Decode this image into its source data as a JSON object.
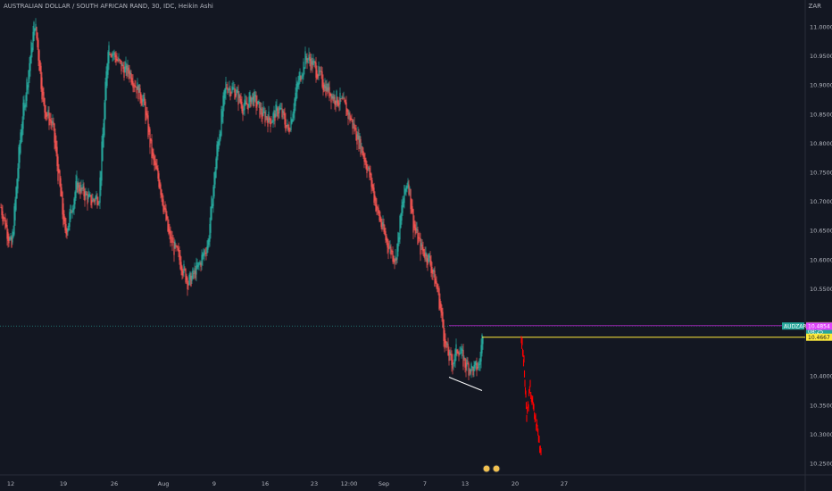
{
  "header": {
    "title": "AUSTRALIAN DOLLAR / SOUTH AFRICAN RAND, 30, IDC, Heikin Ashi",
    "currency": "ZAR"
  },
  "colors": {
    "background": "#131722",
    "up": "#26a69a",
    "down": "#ef5350",
    "projection": "#ff0000",
    "purple_line": "#9c27b0",
    "yellow_line": "#ffeb3b",
    "trend_line": "#ffffff"
  },
  "price_tags": {
    "symbol": "AUDZAR",
    "top": "10.4865",
    "last": "10.4859",
    "countdown": "08:25",
    "magenta": "10.4854",
    "yellow": "10.4667"
  },
  "chart_data": {
    "type": "candlestick",
    "style": "Heikin Ashi",
    "timeframe": "30",
    "ylim": [
      10.23,
      11.05
    ],
    "yticks": [
      "11.0000",
      "10.9500",
      "10.9000",
      "10.8500",
      "10.8000",
      "10.7500",
      "10.7000",
      "10.6500",
      "10.6000",
      "10.5500",
      "10.4000",
      "10.3500",
      "10.3000",
      "10.2500"
    ],
    "xticks": [
      "12",
      "19",
      "26",
      "Aug",
      "9",
      "16",
      "23",
      "12:00",
      "Sep",
      "7",
      "13",
      "20",
      "27"
    ],
    "key_points": [
      {
        "i": 0,
        "p": 10.69
      },
      {
        "i": 12,
        "p": 10.62
      },
      {
        "i": 22,
        "p": 10.82
      },
      {
        "i": 38,
        "p": 11.01
      },
      {
        "i": 48,
        "p": 10.86
      },
      {
        "i": 58,
        "p": 10.83
      },
      {
        "i": 72,
        "p": 10.64
      },
      {
        "i": 85,
        "p": 10.73
      },
      {
        "i": 100,
        "p": 10.7
      },
      {
        "i": 110,
        "p": 10.71
      },
      {
        "i": 120,
        "p": 10.97
      },
      {
        "i": 135,
        "p": 10.93
      },
      {
        "i": 145,
        "p": 10.92
      },
      {
        "i": 160,
        "p": 10.87
      },
      {
        "i": 170,
        "p": 10.77
      },
      {
        "i": 178,
        "p": 10.73
      },
      {
        "i": 188,
        "p": 10.64
      },
      {
        "i": 200,
        "p": 10.6
      },
      {
        "i": 210,
        "p": 10.56
      },
      {
        "i": 222,
        "p": 10.59
      },
      {
        "i": 232,
        "p": 10.63
      },
      {
        "i": 242,
        "p": 10.79
      },
      {
        "i": 252,
        "p": 10.9
      },
      {
        "i": 262,
        "p": 10.89
      },
      {
        "i": 272,
        "p": 10.86
      },
      {
        "i": 282,
        "p": 10.88
      },
      {
        "i": 292,
        "p": 10.85
      },
      {
        "i": 302,
        "p": 10.84
      },
      {
        "i": 312,
        "p": 10.86
      },
      {
        "i": 322,
        "p": 10.82
      },
      {
        "i": 332,
        "p": 10.9
      },
      {
        "i": 342,
        "p": 10.95
      },
      {
        "i": 352,
        "p": 10.93
      },
      {
        "i": 362,
        "p": 10.9
      },
      {
        "i": 372,
        "p": 10.88
      },
      {
        "i": 382,
        "p": 10.87
      },
      {
        "i": 392,
        "p": 10.84
      },
      {
        "i": 402,
        "p": 10.8
      },
      {
        "i": 412,
        "p": 10.75
      },
      {
        "i": 422,
        "p": 10.68
      },
      {
        "i": 432,
        "p": 10.63
      },
      {
        "i": 442,
        "p": 10.6
      },
      {
        "i": 450,
        "p": 10.7
      },
      {
        "i": 456,
        "p": 10.74
      },
      {
        "i": 462,
        "p": 10.66
      },
      {
        "i": 470,
        "p": 10.62
      },
      {
        "i": 480,
        "p": 10.6
      },
      {
        "i": 490,
        "p": 10.54
      },
      {
        "i": 498,
        "p": 10.45
      },
      {
        "i": 505,
        "p": 10.42
      },
      {
        "i": 512,
        "p": 10.45
      },
      {
        "i": 520,
        "p": 10.42
      },
      {
        "i": 530,
        "p": 10.41
      },
      {
        "i": 536,
        "p": 10.42
      },
      {
        "i": 540,
        "p": 10.48
      }
    ],
    "projection": [
      {
        "t": "18",
        "p": 10.466
      },
      {
        "t": "19",
        "p": 10.42
      },
      {
        "t": "19.5",
        "p": 10.33
      },
      {
        "t": "20",
        "p": 10.38
      },
      {
        "t": "20.5",
        "p": 10.34
      },
      {
        "t": "21",
        "p": 10.31
      },
      {
        "t": "21.5",
        "p": 10.27
      }
    ],
    "levels": [
      {
        "name": "purple",
        "value": 10.4865
      },
      {
        "name": "yellow",
        "value": 10.4667
      }
    ],
    "trendline": [
      {
        "t": "9",
        "p": 10.398
      },
      {
        "t": "14",
        "p": 10.375
      }
    ]
  }
}
